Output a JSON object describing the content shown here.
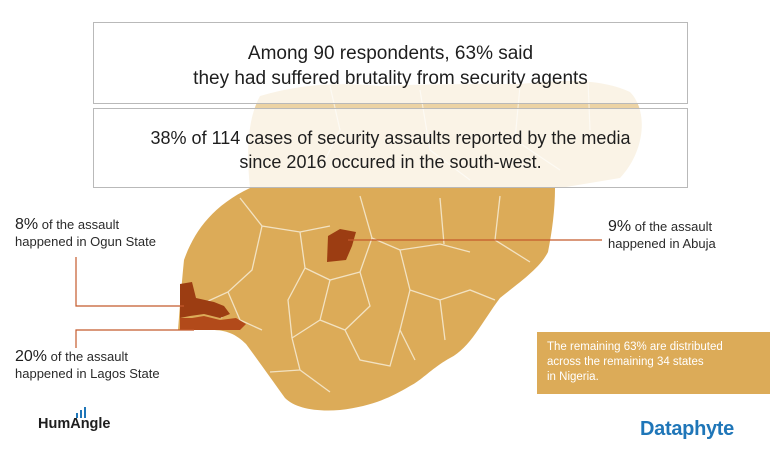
{
  "headline_box_1": {
    "line1": "Among 90 respondents, 63% said",
    "line2": "they had suffered brutality from security agents"
  },
  "headline_box_2": {
    "line1": "38% of 114 cases of security assaults reported by the media",
    "line2": "since 2016 occured in the  south-west."
  },
  "callouts": {
    "ogun": {
      "pct": "8%",
      "text1": " of the assault",
      "text2": "happened in Ogun State"
    },
    "lagos": {
      "pct": "20%",
      "text1": " of the assault",
      "text2": "happened in Lagos State"
    },
    "abuja": {
      "pct": "9%",
      "text1": " of the assault",
      "text2": "happened in Abuja"
    }
  },
  "remaining_note": {
    "line1": "The remaining 63% are distributed",
    "line2": "across the remaining 34 states",
    "line3": "in Nigeria."
  },
  "logos": {
    "left": "HumAngle",
    "right": "Dataphyte"
  },
  "colors": {
    "map_fill": "#dcab58",
    "map_fill_light": "#ecd3a4",
    "highlight": "#9c3d12",
    "leader_line": "#c45a2c",
    "state_border": "#f2e2c2",
    "brand_blue": "#1f76b8"
  }
}
